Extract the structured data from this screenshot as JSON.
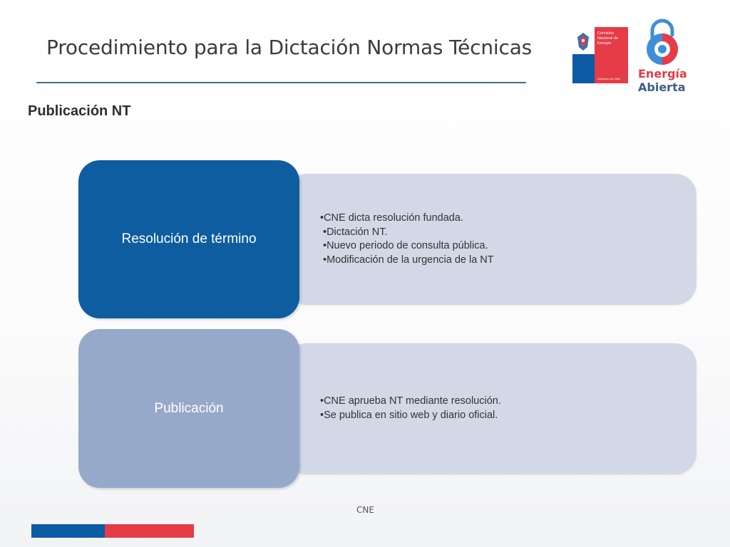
{
  "header": {
    "title": "Procedimiento para la Dictación Normas Técnicas",
    "subtitle": "Publicación NT"
  },
  "logos": {
    "cne": {
      "line1": "Comisión",
      "line2": "Nacional de",
      "line3": "Energía",
      "footer": "Gobierno de Chile"
    },
    "energia_abierta": {
      "word1": "Energía",
      "word2": "Abierta"
    }
  },
  "blocks": [
    {
      "heading": "Resolución de término",
      "bullets": [
        "CNE dicta resolución fundada.",
        "Dictación NT.",
        "Nuevo periodo de consulta pública.",
        "Modificación de la urgencia de la NT"
      ]
    },
    {
      "heading": "Publicación",
      "bullets": [
        "CNE aprueba NT mediante resolución.",
        "Se publica en sitio web y diario oficial."
      ]
    }
  ],
  "footer": {
    "text": "CNE"
  },
  "colors": {
    "title_rule": "#3f6f93",
    "block1_heading": "#0e5da0",
    "block2_heading": "#97a9cb",
    "panel": "#d2d8e6",
    "brand_blue": "#0d5ba5",
    "brand_red": "#e53c48"
  }
}
